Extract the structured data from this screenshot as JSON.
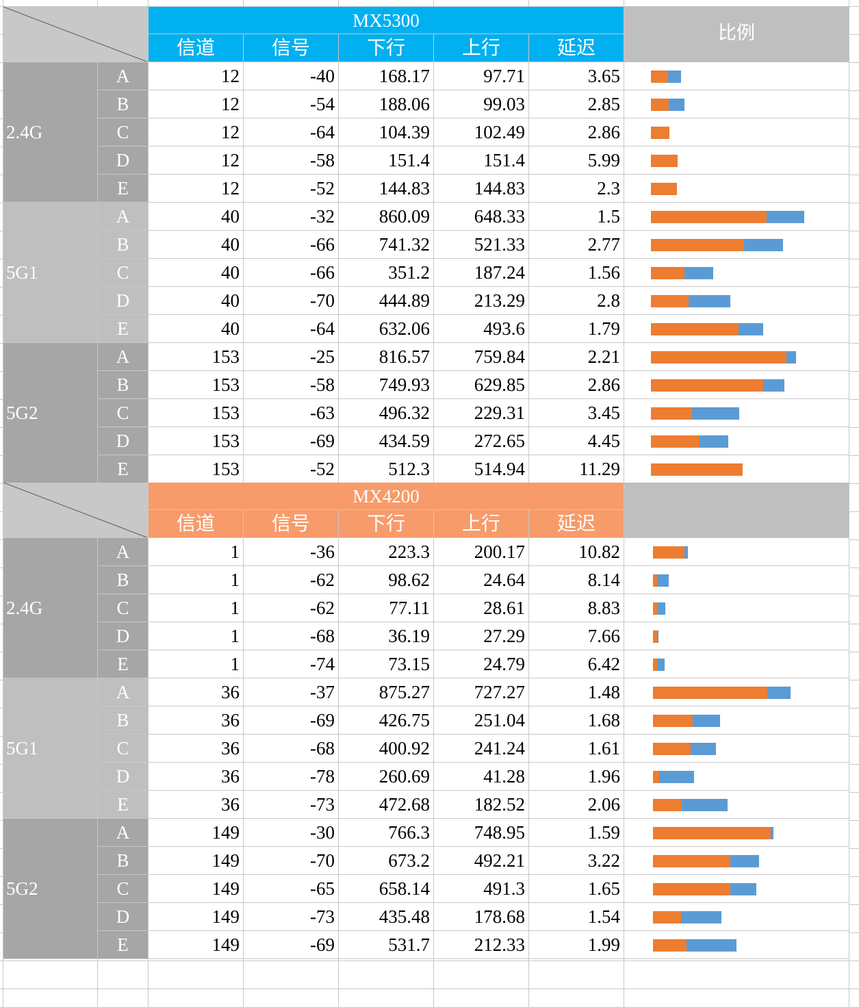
{
  "sections": [
    {
      "title": "MX5300",
      "columns": [
        "信道",
        "信号",
        "下行",
        "上行",
        "延迟"
      ],
      "ratio_header": "比例",
      "groups": [
        {
          "band": "2.4G",
          "rows": [
            {
              "id": "A",
              "values": [
                12,
                -40,
                168.17,
                97.71,
                3.65
              ]
            },
            {
              "id": "B",
              "values": [
                12,
                -54,
                188.06,
                99.03,
                2.85
              ]
            },
            {
              "id": "C",
              "values": [
                12,
                -64,
                104.39,
                102.49,
                2.86
              ]
            },
            {
              "id": "D",
              "values": [
                12,
                -58,
                151.4,
                151.4,
                5.99
              ]
            },
            {
              "id": "E",
              "values": [
                12,
                -52,
                144.83,
                144.83,
                2.3
              ]
            }
          ]
        },
        {
          "band": "5G1",
          "rows": [
            {
              "id": "A",
              "values": [
                40,
                -32,
                860.09,
                648.33,
                1.5
              ]
            },
            {
              "id": "B",
              "values": [
                40,
                -66,
                741.32,
                521.33,
                2.77
              ]
            },
            {
              "id": "C",
              "values": [
                40,
                -66,
                351.2,
                187.24,
                1.56
              ]
            },
            {
              "id": "D",
              "values": [
                40,
                -70,
                444.89,
                213.29,
                2.8
              ]
            },
            {
              "id": "E",
              "values": [
                40,
                -64,
                632.06,
                493.6,
                1.79
              ]
            }
          ]
        },
        {
          "band": "5G2",
          "rows": [
            {
              "id": "A",
              "values": [
                153,
                -25,
                816.57,
                759.84,
                2.21
              ]
            },
            {
              "id": "B",
              "values": [
                153,
                -58,
                749.93,
                629.85,
                2.86
              ]
            },
            {
              "id": "C",
              "values": [
                153,
                -63,
                496.32,
                229.31,
                3.45
              ]
            },
            {
              "id": "D",
              "values": [
                153,
                -69,
                434.59,
                272.65,
                4.45
              ]
            },
            {
              "id": "E",
              "values": [
                153,
                -52,
                512.3,
                514.94,
                11.29
              ]
            }
          ]
        }
      ]
    },
    {
      "title": "MX4200",
      "columns": [
        "信道",
        "信号",
        "下行",
        "上行",
        "延迟"
      ],
      "groups": [
        {
          "band": "2.4G",
          "rows": [
            {
              "id": "A",
              "values": [
                1,
                -36,
                223.3,
                200.17,
                10.82
              ]
            },
            {
              "id": "B",
              "values": [
                1,
                -62,
                98.62,
                24.64,
                8.14
              ]
            },
            {
              "id": "C",
              "values": [
                1,
                -62,
                77.11,
                28.61,
                8.83
              ]
            },
            {
              "id": "D",
              "values": [
                1,
                -68,
                36.19,
                27.29,
                7.66
              ]
            },
            {
              "id": "E",
              "values": [
                1,
                -74,
                73.15,
                24.79,
                6.42
              ]
            }
          ]
        },
        {
          "band": "5G1",
          "rows": [
            {
              "id": "A",
              "values": [
                36,
                -37,
                875.27,
                727.27,
                1.48
              ]
            },
            {
              "id": "B",
              "values": [
                36,
                -69,
                426.75,
                251.04,
                1.68
              ]
            },
            {
              "id": "C",
              "values": [
                36,
                -68,
                400.92,
                241.24,
                1.61
              ]
            },
            {
              "id": "D",
              "values": [
                36,
                -78,
                260.69,
                41.28,
                1.96
              ]
            },
            {
              "id": "E",
              "values": [
                36,
                -73,
                472.68,
                182.52,
                2.06
              ]
            }
          ]
        },
        {
          "band": "5G2",
          "rows": [
            {
              "id": "A",
              "values": [
                149,
                -30,
                766.3,
                748.95,
                1.59
              ]
            },
            {
              "id": "B",
              "values": [
                149,
                -70,
                673.2,
                492.21,
                3.22
              ]
            },
            {
              "id": "C",
              "values": [
                149,
                -65,
                658.14,
                491.3,
                1.65
              ]
            },
            {
              "id": "D",
              "values": [
                149,
                -73,
                435.48,
                178.68,
                1.54
              ]
            },
            {
              "id": "E",
              "values": [
                149,
                -69,
                531.7,
                212.33,
                1.99
              ]
            }
          ]
        }
      ]
    }
  ]
}
